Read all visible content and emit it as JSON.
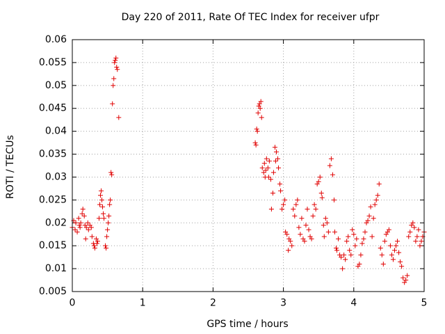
{
  "chart_data": {
    "type": "scatter",
    "title": "Day 220 of 2011, Rate Of TEC Index for receiver ufpr",
    "xlabel": "GPS time / hours",
    "ylabel": "ROTI / TECUs",
    "xlim": [
      0,
      5
    ],
    "ylim": [
      0.005,
      0.06
    ],
    "x_ticks": [
      0,
      1,
      2,
      3,
      4,
      5
    ],
    "x_tick_labels": [
      "0",
      "1",
      "2",
      "3",
      "4",
      "5"
    ],
    "y_ticks": [
      0.005,
      0.01,
      0.015,
      0.02,
      0.025,
      0.03,
      0.035,
      0.04,
      0.045,
      0.05,
      0.055,
      0.06
    ],
    "y_tick_labels": [
      "0.005",
      "0.01",
      "0.015",
      "0.02",
      "0.025",
      "0.03",
      "0.035",
      "0.04",
      "0.045",
      "0.05",
      "0.055",
      "0.06"
    ],
    "grid": true,
    "marker": "+",
    "marker_color": "#e00000",
    "series": [
      {
        "name": "ROTI",
        "x": [
          0.0,
          0.02,
          0.04,
          0.05,
          0.07,
          0.09,
          0.1,
          0.11,
          0.12,
          0.14,
          0.15,
          0.17,
          0.18,
          0.19,
          0.2,
          0.22,
          0.23,
          0.25,
          0.27,
          0.28,
          0.3,
          0.31,
          0.32,
          0.34,
          0.35,
          0.36,
          0.38,
          0.39,
          0.4,
          0.41,
          0.42,
          0.43,
          0.44,
          0.45,
          0.47,
          0.48,
          0.49,
          0.5,
          0.51,
          0.52,
          0.53,
          0.54,
          0.55,
          0.56,
          0.57,
          0.58,
          0.59,
          0.6,
          0.61,
          0.62,
          0.63,
          0.64,
          0.66,
          2.6,
          2.61,
          2.62,
          2.63,
          2.64,
          2.65,
          2.66,
          2.67,
          2.68,
          2.69,
          2.7,
          2.72,
          2.73,
          2.74,
          2.75,
          2.76,
          2.78,
          2.79,
          2.8,
          2.82,
          2.83,
          2.85,
          2.86,
          2.88,
          2.89,
          2.9,
          2.92,
          2.93,
          2.95,
          2.96,
          2.98,
          3.0,
          3.02,
          3.03,
          3.05,
          3.07,
          3.08,
          3.1,
          3.12,
          3.14,
          3.16,
          3.18,
          3.2,
          3.22,
          3.24,
          3.26,
          3.28,
          3.3,
          3.32,
          3.34,
          3.36,
          3.38,
          3.4,
          3.42,
          3.44,
          3.46,
          3.48,
          3.5,
          3.52,
          3.54,
          3.55,
          3.57,
          3.58,
          3.6,
          3.62,
          3.64,
          3.66,
          3.68,
          3.7,
          3.72,
          3.73,
          3.75,
          3.76,
          3.78,
          3.8,
          3.82,
          3.84,
          3.86,
          3.88,
          3.9,
          3.92,
          3.94,
          3.96,
          3.98,
          4.0,
          4.02,
          4.04,
          4.06,
          4.08,
          4.1,
          4.12,
          4.14,
          4.16,
          4.18,
          4.2,
          4.22,
          4.24,
          4.26,
          4.28,
          4.3,
          4.32,
          4.34,
          4.36,
          4.38,
          4.4,
          4.42,
          4.44,
          4.46,
          4.48,
          4.5,
          4.52,
          4.54,
          4.56,
          4.58,
          4.6,
          4.62,
          4.64,
          4.66,
          4.68,
          4.7,
          4.72,
          4.74,
          4.76,
          4.78,
          4.8,
          4.82,
          4.84,
          4.86,
          4.88,
          4.9,
          4.92,
          4.94,
          4.96,
          4.98,
          5.0
        ],
        "y": [
          0.019,
          0.0205,
          0.0185,
          0.02,
          0.018,
          0.021,
          0.0195,
          0.019,
          0.02,
          0.022,
          0.023,
          0.0215,
          0.0195,
          0.0165,
          0.019,
          0.02,
          0.0185,
          0.0195,
          0.019,
          0.017,
          0.0155,
          0.015,
          0.0145,
          0.0165,
          0.0155,
          0.016,
          0.021,
          0.024,
          0.026,
          0.027,
          0.025,
          0.0235,
          0.022,
          0.021,
          0.015,
          0.0145,
          0.017,
          0.0185,
          0.02,
          0.0215,
          0.024,
          0.025,
          0.031,
          0.0305,
          0.046,
          0.05,
          0.0515,
          0.055,
          0.0555,
          0.056,
          0.054,
          0.0535,
          0.043,
          0.0375,
          0.037,
          0.0405,
          0.04,
          0.044,
          0.0455,
          0.046,
          0.045,
          0.0465,
          0.043,
          0.032,
          0.031,
          0.033,
          0.03,
          0.0315,
          0.034,
          0.032,
          0.03,
          0.0335,
          0.0295,
          0.023,
          0.0265,
          0.031,
          0.0365,
          0.0335,
          0.0355,
          0.034,
          0.032,
          0.0285,
          0.027,
          0.023,
          0.024,
          0.025,
          0.018,
          0.0175,
          0.014,
          0.0165,
          0.016,
          0.015,
          0.023,
          0.0215,
          0.024,
          0.025,
          0.019,
          0.0175,
          0.021,
          0.0165,
          0.016,
          0.0195,
          0.023,
          0.0185,
          0.017,
          0.0165,
          0.0215,
          0.024,
          0.023,
          0.0285,
          0.029,
          0.03,
          0.0265,
          0.0255,
          0.0195,
          0.017,
          0.021,
          0.02,
          0.018,
          0.0325,
          0.034,
          0.0305,
          0.025,
          0.018,
          0.0145,
          0.014,
          0.0165,
          0.013,
          0.0125,
          0.01,
          0.013,
          0.012,
          0.016,
          0.017,
          0.014,
          0.013,
          0.0185,
          0.0175,
          0.015,
          0.0165,
          0.0105,
          0.011,
          0.013,
          0.0155,
          0.0165,
          0.018,
          0.02,
          0.0205,
          0.0215,
          0.0235,
          0.017,
          0.021,
          0.024,
          0.025,
          0.026,
          0.0285,
          0.0145,
          0.013,
          0.011,
          0.016,
          0.0175,
          0.018,
          0.0185,
          0.015,
          0.013,
          0.012,
          0.014,
          0.015,
          0.016,
          0.0135,
          0.0115,
          0.0105,
          0.008,
          0.007,
          0.0075,
          0.0085,
          0.017,
          0.018,
          0.0195,
          0.02,
          0.019,
          0.016,
          0.017,
          0.0185,
          0.015,
          0.016,
          0.017,
          0.018
        ]
      }
    ]
  }
}
